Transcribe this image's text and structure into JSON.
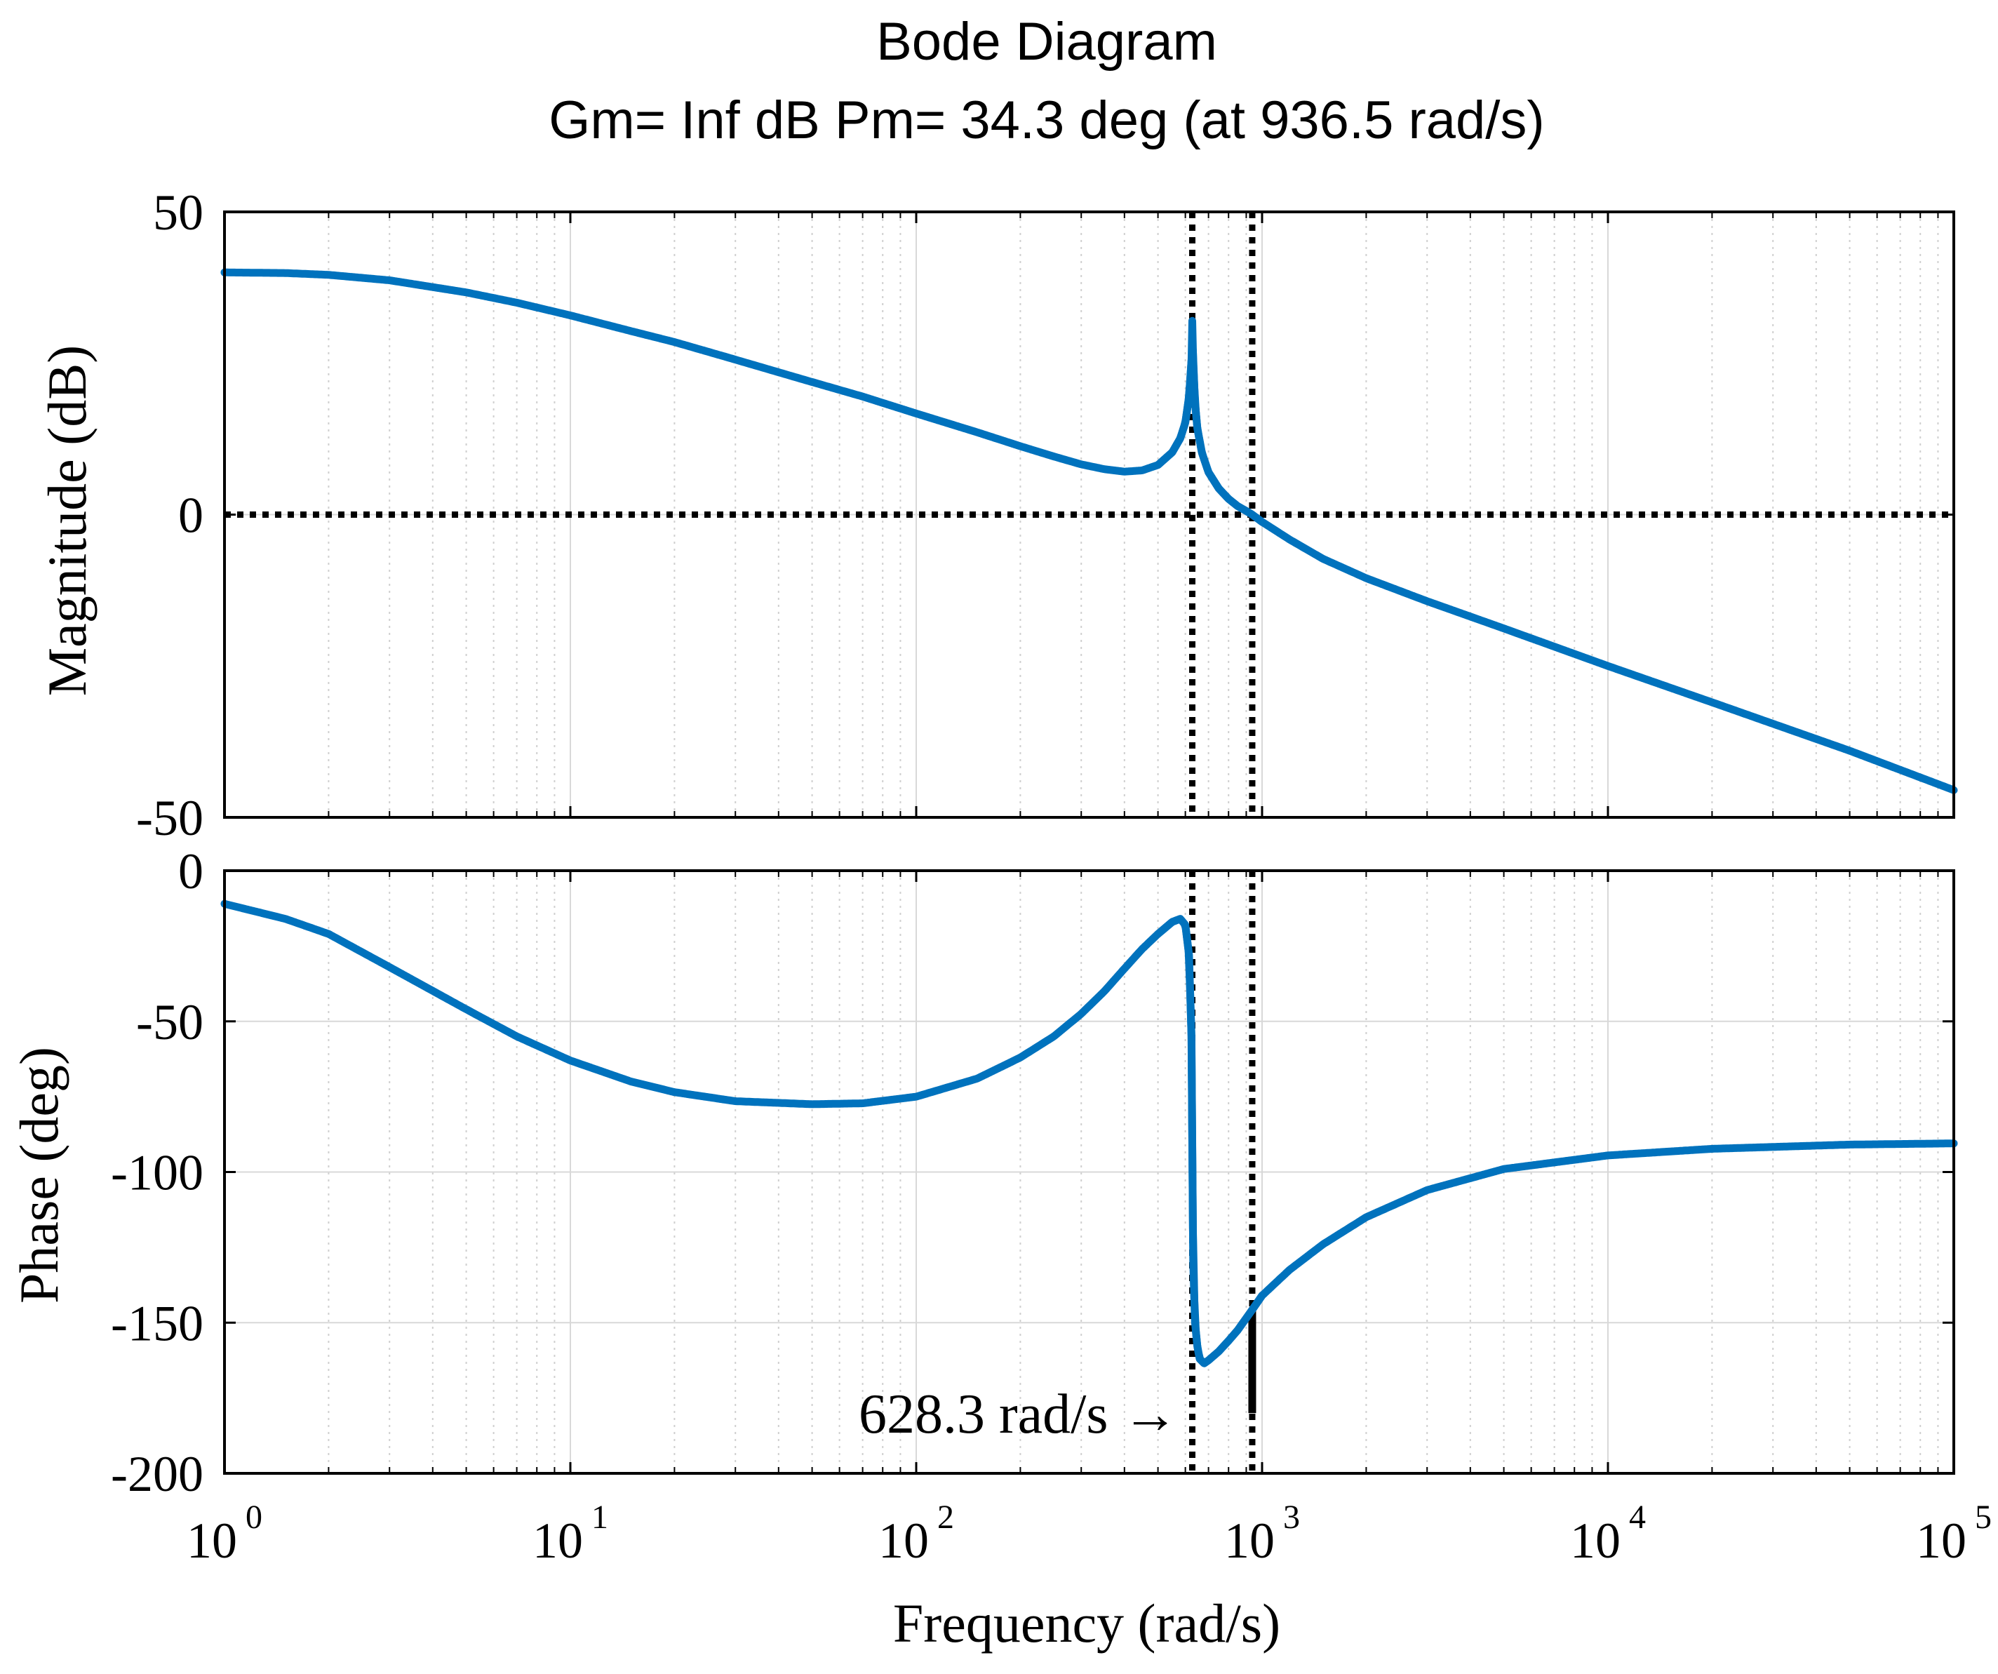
{
  "chart_data": {
    "type": "line",
    "title": "Bode Diagram",
    "subtitle": "Gm= Inf dB  Pm= 34.3 deg (at 936.5 rad/s)",
    "xlabel": "Frequency (rad/s)",
    "xscale": "log",
    "xlim": [
      1,
      100000
    ],
    "x_ticks": [
      {
        "base": "10",
        "exp": "0"
      },
      {
        "base": "10",
        "exp": "1"
      },
      {
        "base": "10",
        "exp": "2"
      },
      {
        "base": "10",
        "exp": "3"
      },
      {
        "base": "10",
        "exp": "4"
      },
      {
        "base": "10",
        "exp": "5"
      }
    ],
    "grid": true,
    "line_color": "#0072BD",
    "marker_color": "#000000",
    "magnitude": {
      "ylabel": "Magnitude (dB)",
      "ylim": [
        -50,
        50
      ],
      "y_ticks": [
        "50",
        "0",
        "-50"
      ],
      "series": {
        "name": "Magnitude",
        "x": [
          1,
          1.5,
          2,
          3,
          5,
          7,
          10,
          15,
          20,
          30,
          50,
          70,
          100,
          150,
          200,
          250,
          300,
          350,
          400,
          450,
          500,
          550,
          580,
          600,
          615,
          625,
          628.3,
          632,
          640,
          650,
          670,
          700,
          750,
          800,
          850,
          900,
          936.5,
          1000,
          1200,
          1500,
          2000,
          3000,
          5000,
          10000,
          20000,
          50000,
          100000
        ],
        "values": [
          40,
          39.9,
          39.6,
          38.7,
          36.7,
          35,
          32.9,
          30.3,
          28.5,
          25.6,
          21.9,
          19.5,
          16.7,
          13.6,
          11.3,
          9.6,
          8.3,
          7.5,
          7.1,
          7.3,
          8.2,
          10.3,
          12.6,
          15.2,
          19.5,
          25.5,
          32,
          25.3,
          18.5,
          14.2,
          10.2,
          7,
          4.3,
          2.6,
          1.4,
          0.6,
          0,
          -1.2,
          -4.1,
          -7.3,
          -10.5,
          -14.3,
          -18.8,
          -25,
          -31,
          -39,
          -45.5
        ]
      },
      "reference_line": {
        "name": "0 dB",
        "y": 0
      }
    },
    "phase": {
      "ylabel": "Phase (deg)",
      "ylim": [
        -200,
        0
      ],
      "y_ticks": [
        "0",
        "-50",
        "-100",
        "-150",
        "-200"
      ],
      "series": {
        "name": "Phase",
        "x": [
          1,
          1.5,
          2,
          3,
          5,
          7,
          10,
          15,
          20,
          30,
          50,
          70,
          100,
          150,
          200,
          250,
          300,
          350,
          400,
          450,
          500,
          550,
          580,
          600,
          615,
          625,
          628.3,
          632,
          640,
          650,
          660,
          680,
          700,
          750,
          800,
          850,
          900,
          936.5,
          1000,
          1200,
          1500,
          2000,
          3000,
          5000,
          10000,
          20000,
          50000,
          100000
        ],
        "values": [
          -11,
          -16,
          -21,
          -32,
          -46,
          -55,
          -63,
          -70,
          -73.5,
          -76.5,
          -77.5,
          -77.2,
          -75,
          -69,
          -62,
          -55,
          -47.5,
          -40,
          -32.5,
          -26,
          -21,
          -17,
          -16,
          -18,
          -28,
          -55,
          -90,
          -130,
          -150,
          -158,
          -162,
          -163.5,
          -162.5,
          -159.5,
          -156,
          -152.5,
          -148.5,
          -145.7,
          -141,
          -132.5,
          -124,
          -115,
          -106,
          -99,
          -94.5,
          -92.3,
          -90.9,
          -90.5
        ]
      },
      "phase_margin_marker": {
        "x": 936.5,
        "from": -180,
        "to": -145.7
      }
    },
    "vertical_lines": [
      {
        "name": "resonance",
        "x": 628.3
      },
      {
        "name": "crossover",
        "x": 936.5
      }
    ],
    "annotations": [
      {
        "text": "628.3 rad/s",
        "arrow": "→",
        "x": 628.3,
        "y": -180
      }
    ]
  }
}
